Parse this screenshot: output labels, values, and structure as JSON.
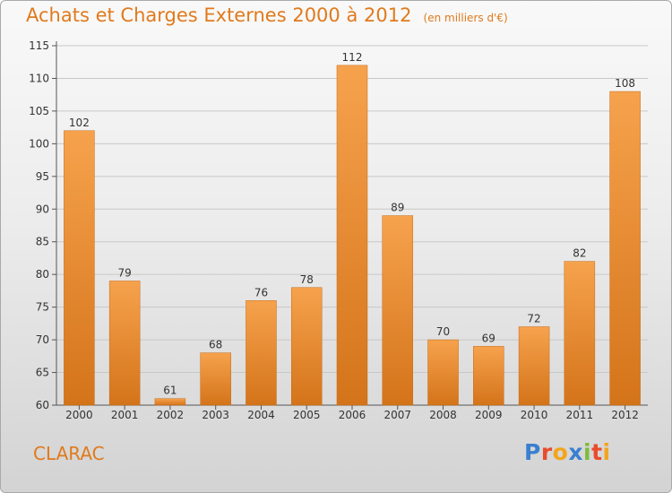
{
  "header": {
    "title": "Achats et Charges Externes 2000 à 2012",
    "unit": "(en milliers d'€)"
  },
  "footer": {
    "commune": "CLARAC",
    "brand": "Proxiti",
    "brand_colors": [
      "#3a7fd0",
      "#e94b2c",
      "#f2a51c",
      "#3a7fd0",
      "#7fbb3a",
      "#e94b2c",
      "#f2a51c"
    ]
  },
  "chart_data": {
    "type": "bar",
    "categories": [
      "2000",
      "2001",
      "2002",
      "2003",
      "2004",
      "2005",
      "2006",
      "2007",
      "2008",
      "2009",
      "2010",
      "2011",
      "2012"
    ],
    "values": [
      102,
      79,
      61,
      68,
      76,
      78,
      112,
      89,
      70,
      69,
      72,
      82,
      108
    ],
    "ylim": [
      60,
      115
    ],
    "yticks": [
      60,
      65,
      70,
      75,
      80,
      85,
      90,
      95,
      100,
      105,
      110,
      115
    ],
    "grid": true,
    "bar_color": "#f08a2c",
    "title": "Achats et Charges Externes 2000 à 2012",
    "xlabel": "",
    "ylabel": ""
  }
}
